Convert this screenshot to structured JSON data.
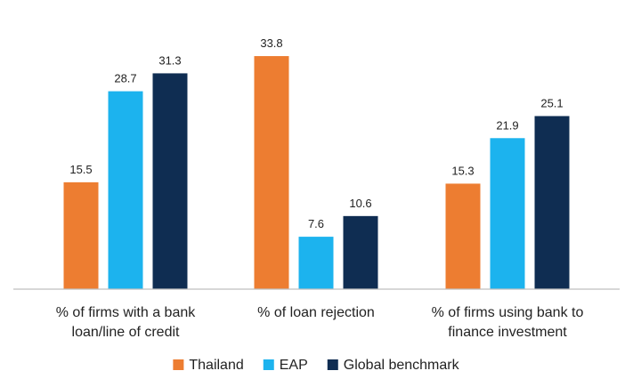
{
  "chart_data": {
    "type": "bar",
    "title": "",
    "xlabel": "",
    "ylabel": "",
    "ylim": [
      0,
      36
    ],
    "grid": false,
    "legend_position": "bottom",
    "categories": [
      [
        "% of firms with a bank",
        "loan/line of credit"
      ],
      [
        "% of loan rejection"
      ],
      [
        "% of firms using bank to",
        "finance investment"
      ]
    ],
    "series": [
      {
        "name": "Thailand",
        "color": "#ED7D31",
        "values": [
          15.5,
          33.8,
          15.3
        ]
      },
      {
        "name": "EAP",
        "color": "#1CB3EE",
        "values": [
          28.7,
          7.6,
          21.9
        ]
      },
      {
        "name": "Global benchmark",
        "color": "#0F2D52",
        "values": [
          31.3,
          10.6,
          25.1
        ]
      }
    ],
    "axis_color": "#BFBFBF"
  }
}
